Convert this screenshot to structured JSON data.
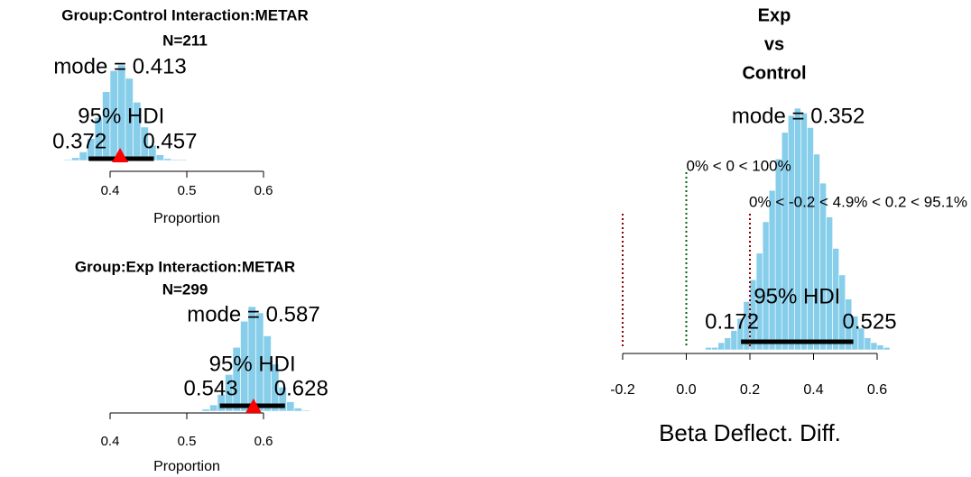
{
  "chart_data": [
    {
      "type": "histogram",
      "title": [
        "Group:Control  Interaction:METAR",
        "N=211"
      ],
      "bins": [
        0.34,
        0.35,
        0.36,
        0.37,
        0.38,
        0.39,
        0.4,
        0.41,
        0.42,
        0.43,
        0.44,
        0.45,
        0.46,
        0.47,
        0.48,
        0.49,
        0.5,
        0.51
      ],
      "counts": [
        1,
        3,
        9,
        23,
        45,
        72,
        94,
        100,
        86,
        61,
        35,
        16,
        6,
        2,
        1,
        1,
        0
      ],
      "color": "#87ceeb",
      "mode": {
        "value": 0.413,
        "label": "mode = 0.413"
      },
      "mode_marker": true,
      "hdi_label": "95% HDI",
      "hdi": [
        0.372,
        0.457
      ],
      "xlim": [
        0.3,
        0.7
      ],
      "xticks": [
        0.4,
        0.5,
        0.6
      ],
      "xlabel": "Proportion"
    },
    {
      "type": "histogram",
      "title": [
        "Group:Exp  Interaction:METAR",
        "N=299"
      ],
      "bins": [
        0.52,
        0.53,
        0.54,
        0.55,
        0.56,
        0.57,
        0.58,
        0.59,
        0.6,
        0.61,
        0.62,
        0.63,
        0.64,
        0.65,
        0.66,
        0.67
      ],
      "counts": [
        2,
        6,
        16,
        35,
        61,
        86,
        100,
        94,
        72,
        45,
        23,
        9,
        3,
        1,
        0
      ],
      "color": "#87ceeb",
      "mode": {
        "value": 0.587,
        "label": "mode = 0.587"
      },
      "mode_marker": true,
      "hdi_label": "95% HDI",
      "hdi": [
        0.543,
        0.628
      ],
      "xlim": [
        0.3,
        0.7
      ],
      "xticks": [
        0.4,
        0.5,
        0.6
      ],
      "xlabel": "Proportion"
    },
    {
      "type": "histogram",
      "title": [
        "Exp",
        "vs",
        "Control"
      ],
      "bins": [
        0.04,
        0.06,
        0.08,
        0.1,
        0.12,
        0.14,
        0.16,
        0.18,
        0.2,
        0.22,
        0.24,
        0.26,
        0.28,
        0.3,
        0.32,
        0.34,
        0.36,
        0.38,
        0.4,
        0.42,
        0.44,
        0.46,
        0.48,
        0.5,
        0.52,
        0.54,
        0.56,
        0.58,
        0.6,
        0.62,
        0.64,
        0.66
      ],
      "counts": [
        0,
        1,
        1,
        3,
        5,
        8,
        13,
        20,
        29,
        40,
        53,
        66,
        79,
        90,
        97,
        100,
        98,
        92,
        81,
        69,
        55,
        42,
        31,
        21,
        14,
        9,
        5,
        3,
        2,
        1,
        0
      ],
      "color": "#87ceeb",
      "mode": {
        "value": 0.352,
        "label": "mode = 0.352"
      },
      "mode_marker": false,
      "comp_value": 0,
      "comp_label": "0% < 0 < 100%",
      "comp_color": "#006400",
      "rope": [
        -0.2,
        0.2
      ],
      "rope_label": "0% < -0.2 < 4.9% < 0.2 < 95.1%",
      "rope_color": "#8b0000",
      "hdi_label": "95% HDI",
      "hdi": [
        0.172,
        0.525
      ],
      "xlim": [
        -0.3,
        0.7
      ],
      "xticks": [
        -0.2,
        0.0,
        0.2,
        0.4,
        0.6
      ],
      "xlabel": "Beta Deflect. Diff."
    }
  ]
}
